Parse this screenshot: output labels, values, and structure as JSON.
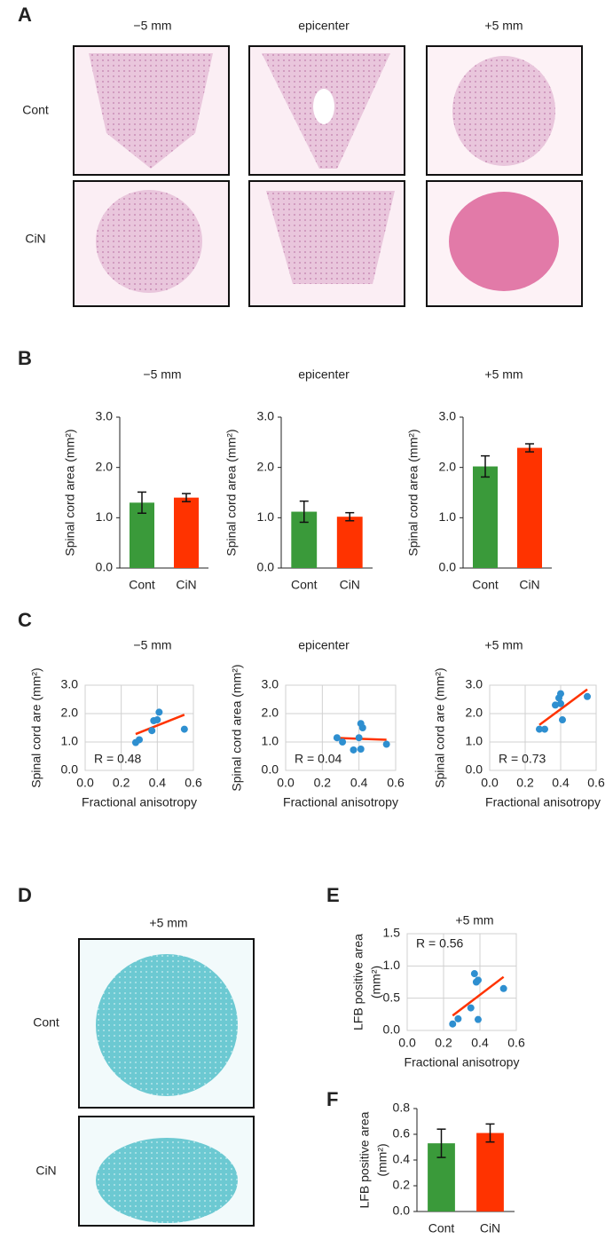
{
  "panel_labels": [
    "A",
    "B",
    "C",
    "D",
    "E",
    "F"
  ],
  "panel_a": {
    "columns": [
      "−5 mm",
      "epicenter",
      "+5 mm"
    ],
    "rows": [
      "Cont",
      "CiN"
    ]
  },
  "panel_d": {
    "title": "+5 mm",
    "rows": [
      "Cont",
      "CiN"
    ]
  },
  "chart_data": [
    {
      "type": "bar",
      "title": "−5 mm",
      "categories": [
        "Cont",
        "CiN"
      ],
      "values": [
        1.3,
        1.4
      ],
      "errors": [
        0.21,
        0.08
      ],
      "colors": [
        "#3a9a3a",
        "#ff3300"
      ],
      "ylabel": [
        "Spinal cord area (mm²)"
      ],
      "ylim": [
        0,
        3
      ],
      "yticks": [
        {
          "value": 0,
          "label": "0.0"
        },
        {
          "value": 1,
          "label": "1.0"
        },
        {
          "value": 2,
          "label": "2.0"
        },
        {
          "value": 3,
          "label": "3.0"
        }
      ]
    },
    {
      "type": "bar",
      "title": "epicenter",
      "categories": [
        "Cont",
        "CiN"
      ],
      "values": [
        1.12,
        1.02
      ],
      "errors": [
        0.21,
        0.08
      ],
      "colors": [
        "#3a9a3a",
        "#ff3300"
      ],
      "ylabel": [
        "Spinal cord area (mm²)"
      ],
      "ylim": [
        0,
        3
      ],
      "yticks": [
        {
          "value": 0,
          "label": "0.0"
        },
        {
          "value": 1,
          "label": "1.0"
        },
        {
          "value": 2,
          "label": "2.0"
        },
        {
          "value": 3,
          "label": "3.0"
        }
      ]
    },
    {
      "type": "bar",
      "title": "+5 mm",
      "categories": [
        "Cont",
        "CiN"
      ],
      "values": [
        2.02,
        2.39
      ],
      "errors": [
        0.21,
        0.08
      ],
      "colors": [
        "#3a9a3a",
        "#ff3300"
      ],
      "ylabel": [
        "Spinal cord area (mm²)"
      ],
      "ylim": [
        0,
        3
      ],
      "yticks": [
        {
          "value": 0,
          "label": "0.0"
        },
        {
          "value": 1,
          "label": "1.0"
        },
        {
          "value": 2,
          "label": "2.0"
        },
        {
          "value": 3,
          "label": "3.0"
        }
      ]
    },
    {
      "type": "scatter",
      "title": "−5 mm",
      "x": [
        0.28,
        0.3,
        0.37,
        0.38,
        0.4,
        0.41,
        0.55
      ],
      "values": [
        0.98,
        1.08,
        1.4,
        1.75,
        1.78,
        2.05,
        1.45
      ],
      "color": "#2e8fd0",
      "trendline": {
        "x": [
          0.28,
          0.55
        ],
        "y": [
          1.28,
          1.96
        ],
        "color": "#ff3300"
      },
      "annotation": "R = 0.48",
      "xlabel": "Fractional anisotropy",
      "ylabel": [
        "Spinal cord are (mm²)"
      ],
      "grid": true,
      "xlim": [
        0,
        0.6
      ],
      "ylim": [
        0,
        3
      ],
      "xticks": [
        {
          "value": 0,
          "label": "0.0"
        },
        0.2,
        0.4,
        0.6
      ],
      "yticks": [
        {
          "value": 0,
          "label": "0.0"
        },
        {
          "value": 1,
          "label": "1.0"
        },
        {
          "value": 2,
          "label": "2.0"
        },
        {
          "value": 3,
          "label": "3.0"
        }
      ]
    },
    {
      "type": "scatter",
      "title": "epicenter",
      "x": [
        0.28,
        0.31,
        0.37,
        0.4,
        0.41,
        0.41,
        0.42,
        0.55
      ],
      "values": [
        1.15,
        1.0,
        0.72,
        1.15,
        0.75,
        1.65,
        1.5,
        0.92
      ],
      "color": "#2e8fd0",
      "trendline": {
        "x": [
          0.28,
          0.55
        ],
        "y": [
          1.14,
          1.08
        ],
        "color": "#ff3300"
      },
      "annotation": "R = 0.04",
      "xlabel": "Fractional anisotropy",
      "ylabel": [
        "Spinal cord area (mm²)"
      ],
      "grid": true,
      "xlim": [
        0,
        0.6
      ],
      "ylim": [
        0,
        3
      ],
      "xticks": [
        {
          "value": 0,
          "label": "0.0"
        },
        0.2,
        0.4,
        0.6
      ],
      "yticks": [
        {
          "value": 0,
          "label": "0.0"
        },
        {
          "value": 1,
          "label": "1.0"
        },
        {
          "value": 2,
          "label": "2.0"
        },
        {
          "value": 3,
          "label": "3.0"
        }
      ]
    },
    {
      "type": "scatter",
      "title": "+5 mm",
      "x": [
        0.28,
        0.31,
        0.37,
        0.39,
        0.4,
        0.4,
        0.41,
        0.55
      ],
      "values": [
        1.45,
        1.45,
        2.3,
        2.55,
        2.7,
        2.35,
        1.78,
        2.6
      ],
      "color": "#2e8fd0",
      "trendline": {
        "x": [
          0.28,
          0.55
        ],
        "y": [
          1.6,
          2.85
        ],
        "color": "#ff3300"
      },
      "annotation": "R = 0.73",
      "xlabel": "Fractional anisotropy",
      "ylabel": [
        "Spinal cord are (mm²)"
      ],
      "grid": true,
      "xlim": [
        0,
        0.6
      ],
      "ylim": [
        0,
        3
      ],
      "xticks": [
        {
          "value": 0,
          "label": "0.0"
        },
        0.2,
        0.4,
        0.6
      ],
      "yticks": [
        {
          "value": 0,
          "label": "0.0"
        },
        {
          "value": 1,
          "label": "1.0"
        },
        {
          "value": 2,
          "label": "2.0"
        },
        {
          "value": 3,
          "label": "3.0"
        }
      ]
    },
    {
      "type": "scatter",
      "title": "+5 mm",
      "x": [
        0.25,
        0.28,
        0.35,
        0.37,
        0.38,
        0.39,
        0.39,
        0.53
      ],
      "values": [
        0.1,
        0.18,
        0.35,
        0.88,
        0.75,
        0.78,
        0.17,
        0.65
      ],
      "color": "#2e8fd0",
      "trendline": {
        "x": [
          0.25,
          0.53
        ],
        "y": [
          0.23,
          0.83
        ],
        "color": "#ff3300"
      },
      "annotation": "R = 0.56",
      "xlabel": "Fractional anisotropy",
      "ylabel": [
        "LFB positive area",
        "(mm²)"
      ],
      "grid": true,
      "xlim": [
        0,
        0.6
      ],
      "ylim": [
        0,
        1.5
      ],
      "xticks": [
        {
          "value": 0,
          "label": "0.0"
        },
        0.2,
        0.4,
        0.6
      ],
      "yticks": [
        {
          "value": 0,
          "label": "0.0"
        },
        0.5,
        {
          "value": 1,
          "label": "1.0"
        },
        1.5
      ]
    },
    {
      "type": "bar",
      "categories": [
        "Cont",
        "CiN"
      ],
      "values": [
        0.53,
        0.61
      ],
      "errors": [
        0.11,
        0.07
      ],
      "colors": [
        "#3a9a3a",
        "#ff3300"
      ],
      "ylabel": [
        "LFB positive area",
        "(mm²)"
      ],
      "ylim": [
        0,
        0.8
      ],
      "yticks": [
        {
          "value": 0,
          "label": "0.0"
        },
        0.2,
        0.4,
        0.6,
        0.8
      ]
    }
  ]
}
